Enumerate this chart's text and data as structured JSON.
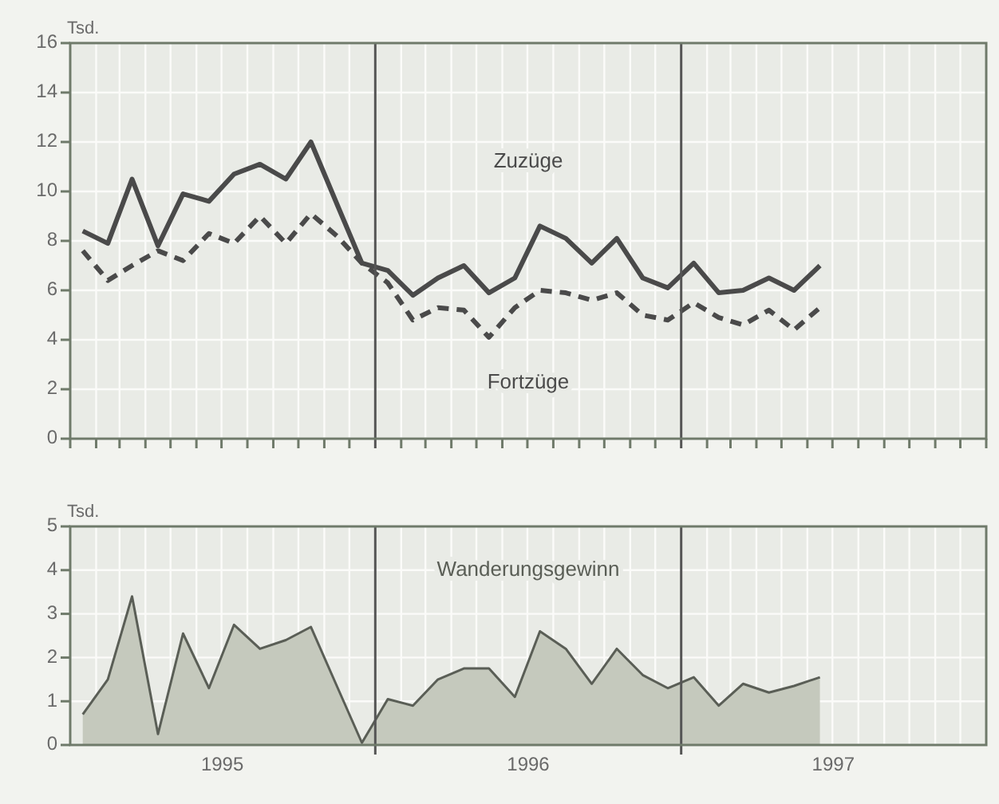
{
  "chart_data": [
    {
      "type": "line",
      "ylabel": "Tsd.",
      "x": [
        "1995-01-16",
        "1995-02-15",
        "1995-03-16",
        "1995-04-16",
        "1995-05-16",
        "1995-06-16",
        "1995-07-16",
        "1995-08-16",
        "1995-09-16",
        "1995-10-16",
        "1995-11-16",
        "1995-12-16",
        "1996-01-16",
        "1996-02-15",
        "1996-03-16",
        "1996-04-16",
        "1996-05-16",
        "1996-06-16",
        "1996-07-16",
        "1996-08-16",
        "1996-09-16",
        "1996-10-16",
        "1996-11-16",
        "1996-12-16",
        "1997-01-16",
        "1997-02-15",
        "1997-03-16",
        "1997-04-16",
        "1997-05-16",
        "1997-06-16"
      ],
      "series": [
        {
          "name": "Zuzüge",
          "color": "#4a4a4a",
          "line_style": "solid",
          "values": [
            8.4,
            7.9,
            10.5,
            7.8,
            9.9,
            9.6,
            10.7,
            11.1,
            10.5,
            12.0,
            9.5,
            7.1,
            6.8,
            5.8,
            6.5,
            7.0,
            5.9,
            6.5,
            8.6,
            8.1,
            7.1,
            8.1,
            6.5,
            6.1,
            7.1,
            5.9,
            6.0,
            6.5,
            6.0,
            7.0
          ]
        },
        {
          "name": "Fortzüge",
          "color": "#4a4a4a",
          "line_style": "dashed",
          "values": [
            7.6,
            6.4,
            7.0,
            7.6,
            7.2,
            8.3,
            7.9,
            9.0,
            7.9,
            9.1,
            8.2,
            7.1,
            6.3,
            4.8,
            5.3,
            5.2,
            4.1,
            5.3,
            6.0,
            5.9,
            5.6,
            5.9,
            5.0,
            4.8,
            5.5,
            4.9,
            4.6,
            5.2,
            4.4,
            5.3
          ]
        }
      ],
      "xlim": [
        "1995-01-01",
        "1998-01-01"
      ],
      "xticks": [
        {
          "value": "1995-01-01",
          "label": null
        },
        {
          "value": "1995-02-01",
          "label": null
        },
        {
          "value": "1995-03-01",
          "label": null
        },
        {
          "value": "1995-04-01",
          "label": null
        },
        {
          "value": "1995-05-01",
          "label": null
        },
        {
          "value": "1995-06-01",
          "label": null
        },
        {
          "value": "1995-07-01",
          "label": null
        },
        {
          "value": "1995-08-01",
          "label": null
        },
        {
          "value": "1995-09-01",
          "label": null
        },
        {
          "value": "1995-10-01",
          "label": null
        },
        {
          "value": "1995-11-01",
          "label": null
        },
        {
          "value": "1995-12-01",
          "label": null
        },
        {
          "value": "1996-02-01",
          "label": null
        },
        {
          "value": "1996-03-01",
          "label": null
        },
        {
          "value": "1996-04-01",
          "label": null
        },
        {
          "value": "1996-05-01",
          "label": null
        },
        {
          "value": "1996-06-01",
          "label": null
        },
        {
          "value": "1996-07-01",
          "label": null
        },
        {
          "value": "1996-08-01",
          "label": null
        },
        {
          "value": "1996-09-01",
          "label": null
        },
        {
          "value": "1996-10-01",
          "label": null
        },
        {
          "value": "1996-11-01",
          "label": null
        },
        {
          "value": "1996-12-01",
          "label": null
        },
        {
          "value": "1997-02-01",
          "label": null
        },
        {
          "value": "1997-03-01",
          "label": null
        },
        {
          "value": "1997-04-01",
          "label": null
        },
        {
          "value": "1997-05-01",
          "label": null
        },
        {
          "value": "1997-06-01",
          "label": null
        },
        {
          "value": "1997-07-01",
          "label": null
        },
        {
          "value": "1997-08-01",
          "label": null
        },
        {
          "value": "1997-09-01",
          "label": null
        },
        {
          "value": "1997-10-01",
          "label": null
        },
        {
          "value": "1997-11-01",
          "label": null
        },
        {
          "value": "1997-12-01",
          "label": null
        },
        {
          "value": "1998-01-01",
          "label": null
        }
      ],
      "ylim": [
        0,
        16
      ],
      "yticks": [
        0,
        2,
        4,
        6,
        8,
        10,
        12,
        14,
        16
      ],
      "grid": true,
      "tick_labels": "y",
      "ref_lines": [
        {
          "axis": "x",
          "value": "1996-01-01",
          "color": "#555555"
        },
        {
          "axis": "x",
          "value": "1997-01-01",
          "color": "#555555"
        }
      ]
    },
    {
      "type": "area",
      "ylabel": "Tsd.",
      "x": [
        "1995-01-16",
        "1995-02-15",
        "1995-03-16",
        "1995-04-16",
        "1995-05-16",
        "1995-06-16",
        "1995-07-16",
        "1995-08-16",
        "1995-09-16",
        "1995-10-16",
        "1995-11-16",
        "1995-12-16",
        "1996-01-16",
        "1996-02-15",
        "1996-03-16",
        "1996-04-16",
        "1996-05-16",
        "1996-06-16",
        "1996-07-16",
        "1996-08-16",
        "1996-09-16",
        "1996-10-16",
        "1996-11-16",
        "1996-12-16",
        "1997-01-16",
        "1997-02-15",
        "1997-03-16",
        "1997-04-16",
        "1997-05-16",
        "1997-06-16"
      ],
      "series": [
        {
          "name": "Wanderungsgewinn",
          "color": "#c5c9bd",
          "values": [
            0.7,
            1.5,
            3.4,
            0.25,
            2.55,
            1.3,
            2.75,
            2.2,
            2.4,
            2.7,
            1.35,
            0.05,
            1.05,
            0.9,
            1.5,
            1.75,
            1.75,
            1.1,
            2.6,
            2.2,
            1.4,
            2.2,
            1.6,
            1.3,
            1.55,
            0.9,
            1.4,
            1.2,
            1.35,
            1.55
          ]
        }
      ],
      "xlim": [
        "1995-01-01",
        "1998-01-01"
      ],
      "xticks": [
        {
          "value": "1995-07-02",
          "label": "1995"
        },
        {
          "value": "1996-07-02",
          "label": "1996"
        },
        {
          "value": "1997-07-02",
          "label": "1997"
        }
      ],
      "ylim": [
        0,
        5
      ],
      "yticks": [
        0,
        1,
        2,
        3,
        4,
        5
      ],
      "grid": true,
      "ref_lines": [
        {
          "axis": "x",
          "value": "1996-01-01",
          "color": "#555555"
        },
        {
          "axis": "x",
          "value": "1997-01-01",
          "color": "#555555"
        }
      ]
    }
  ]
}
